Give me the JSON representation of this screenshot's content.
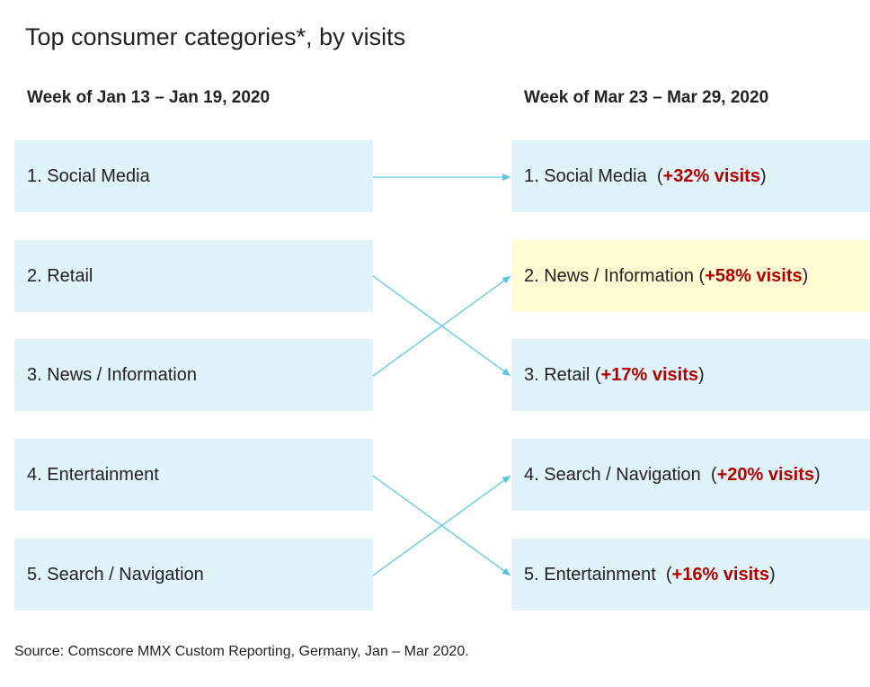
{
  "title": "Top consumer categories*, by visits",
  "left": {
    "heading": "Week of Jan 13 – Jan 19, 2020",
    "items": [
      {
        "label": "1. Social Media"
      },
      {
        "label": "2. Retail"
      },
      {
        "label": "3. News / Information"
      },
      {
        "label": "4. Entertainment"
      },
      {
        "label": "5. Search / Navigation"
      }
    ]
  },
  "right": {
    "heading": "Week of Mar 23 – Mar 29, 2020",
    "items": [
      {
        "label": "1. Social Media",
        "open": "  (",
        "change": "+32% visits",
        "close": ")",
        "highlighted": false
      },
      {
        "label": "2. News / Information",
        "open": " (",
        "change": "+58% visits",
        "close": ")",
        "highlighted": true
      },
      {
        "label": "3. Retail",
        "open": " (",
        "change": "+17% visits",
        "close": ")",
        "highlighted": false
      },
      {
        "label": "4. Search / Navigation",
        "open": "  (",
        "change": "+20% visits",
        "close": ")",
        "highlighted": false
      },
      {
        "label": "5. Entertainment",
        "open": "  (",
        "change": "+16% visits",
        "close": ")",
        "highlighted": false
      }
    ]
  },
  "source": "Source: Comscore MMX Custom Reporting, Germany, Jan – Mar 2020.",
  "colors": {
    "box": "#dff3f8",
    "highlight": "#fffbd3",
    "arrow": "#5bc5e6",
    "change": "#b00000"
  }
}
